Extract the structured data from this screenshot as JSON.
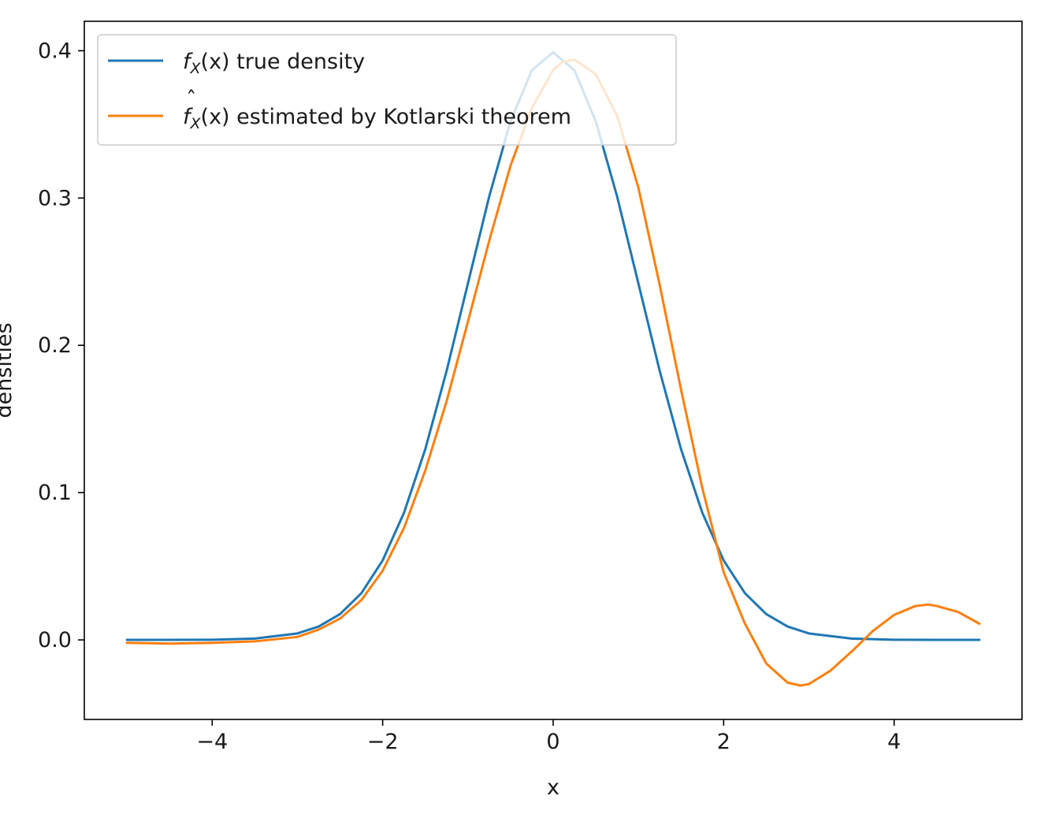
{
  "chart_data": {
    "type": "line",
    "title": "",
    "xlabel": "x",
    "ylabel": "densities",
    "xlim": [
      -5.5,
      5.5
    ],
    "ylim": [
      -0.054,
      0.42
    ],
    "xticks": [
      -4,
      -2,
      0,
      2,
      4
    ],
    "xtick_labels": [
      "−4",
      "−2",
      "0",
      "2",
      "4"
    ],
    "yticks": [
      0.0,
      0.1,
      0.2,
      0.3,
      0.4
    ],
    "ytick_labels": [
      "0.0",
      "0.1",
      "0.2",
      "0.3",
      "0.4"
    ],
    "grid": false,
    "legend_position": "top-left",
    "series": [
      {
        "name": "f_X(x) true density",
        "legend_label": {
          "symbol": "f",
          "hat": false,
          "sub": "X",
          "args": "(x)",
          "rest": " true density"
        },
        "color": "#1f77b4",
        "x": [
          -5.0,
          -4.5,
          -4.0,
          -3.5,
          -3.0,
          -2.75,
          -2.5,
          -2.25,
          -2.0,
          -1.75,
          -1.5,
          -1.25,
          -1.0,
          -0.75,
          -0.5,
          -0.25,
          0.0,
          0.25,
          0.5,
          0.75,
          1.0,
          1.25,
          1.5,
          1.75,
          2.0,
          2.25,
          2.5,
          2.75,
          3.0,
          3.5,
          4.0,
          4.5,
          5.0
        ],
        "y": [
          0.0,
          0.0,
          0.0001,
          0.0009,
          0.0044,
          0.0091,
          0.0175,
          0.0317,
          0.054,
          0.0863,
          0.1295,
          0.1826,
          0.242,
          0.3011,
          0.3521,
          0.3867,
          0.3989,
          0.3867,
          0.3521,
          0.3011,
          0.242,
          0.1826,
          0.1295,
          0.0863,
          0.054,
          0.0317,
          0.0175,
          0.0091,
          0.0044,
          0.0009,
          0.0001,
          0.0,
          0.0
        ]
      },
      {
        "name": "f̂_X(x) estimated by Kotlarski theorem",
        "legend_label": {
          "symbol": "f",
          "hat": true,
          "sub": "X",
          "args": "(x)",
          "rest": " estimated by Kotlarski theorem"
        },
        "color": "#ff7f0e",
        "x": [
          -5.0,
          -4.5,
          -4.0,
          -3.5,
          -3.0,
          -2.75,
          -2.5,
          -2.25,
          -2.0,
          -1.75,
          -1.5,
          -1.25,
          -1.0,
          -0.75,
          -0.5,
          -0.25,
          0.0,
          0.1,
          0.25,
          0.5,
          0.75,
          1.0,
          1.25,
          1.5,
          1.75,
          2.0,
          2.1,
          2.25,
          2.5,
          2.75,
          2.9,
          3.0,
          3.25,
          3.5,
          3.75,
          4.0,
          4.25,
          4.4,
          4.5,
          4.75,
          5.0
        ],
        "y": [
          -0.002,
          -0.0025,
          -0.002,
          -0.001,
          0.002,
          0.007,
          0.0145,
          0.027,
          0.047,
          0.076,
          0.115,
          0.162,
          0.216,
          0.271,
          0.322,
          0.361,
          0.387,
          0.392,
          0.394,
          0.384,
          0.356,
          0.307,
          0.241,
          0.17,
          0.103,
          0.046,
          0.032,
          0.011,
          -0.016,
          -0.029,
          -0.031,
          -0.03,
          -0.021,
          -0.008,
          0.006,
          0.017,
          0.023,
          0.024,
          0.023,
          0.019,
          0.011
        ]
      }
    ]
  }
}
